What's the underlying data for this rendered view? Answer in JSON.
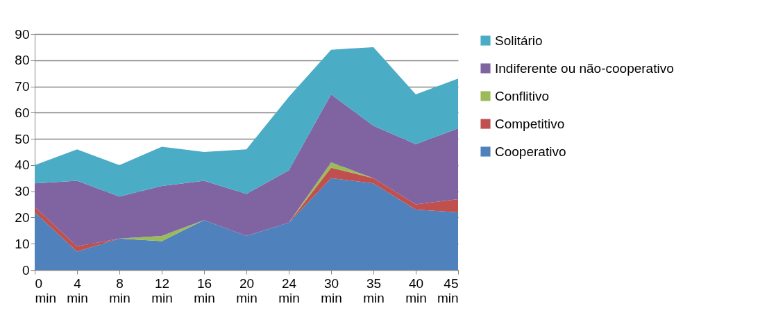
{
  "chart_data": {
    "type": "area",
    "stacked": true,
    "categories": [
      "0 min",
      "4 min",
      "8 min",
      "12 min",
      "16 min",
      "20 min",
      "24 min",
      "30 min",
      "35 min",
      "40 min",
      "45 min"
    ],
    "series": [
      {
        "name": "Cooperativo",
        "color": "#4f81bd",
        "values": [
          22,
          7,
          12,
          11,
          19,
          13,
          18,
          35,
          33,
          23,
          22
        ]
      },
      {
        "name": "Competitivo",
        "color": "#c0504d",
        "values": [
          2,
          2,
          0,
          0,
          0,
          0,
          0,
          4,
          2,
          2,
          5
        ]
      },
      {
        "name": "Conflitivo",
        "color": "#9bbb59",
        "values": [
          0,
          0,
          0,
          2,
          0,
          0,
          0,
          2,
          0,
          0,
          0
        ]
      },
      {
        "name": "Indiferente ou não-cooperativo",
        "color": "#8064a2",
        "values": [
          9,
          25,
          16,
          19,
          15,
          16,
          20,
          26,
          20,
          23,
          27
        ]
      },
      {
        "name": "Solitário",
        "color": "#4bacc6",
        "values": [
          7,
          12,
          12,
          15,
          11,
          17,
          28,
          17,
          30,
          19,
          19
        ]
      }
    ],
    "ylim": [
      0,
      90
    ],
    "yticks": [
      0,
      10,
      20,
      30,
      40,
      50,
      60,
      70,
      80,
      90
    ],
    "grid": "y",
    "legend": "right"
  }
}
